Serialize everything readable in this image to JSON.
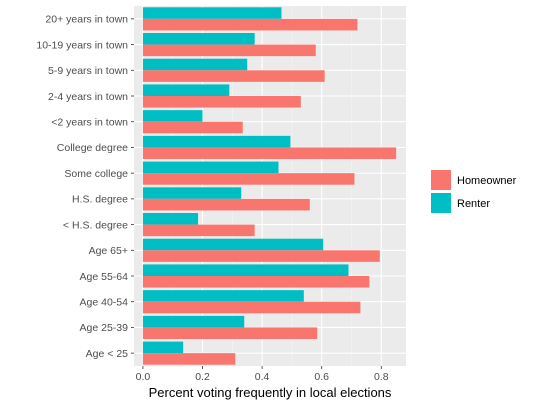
{
  "chart_data": {
    "type": "bar",
    "orientation": "horizontal",
    "categories": [
      "20+ years in town",
      "10-19 years in town",
      "5-9 years in town",
      "2-4 years in town",
      "<2 years in town",
      "College degree",
      "Some college",
      "H.S. degree",
      "< H.S. degree",
      "Age 65+",
      "Age 55-64",
      "Age 40-54",
      "Age 25-39",
      "Age < 25"
    ],
    "series": [
      {
        "name": "Homeowner",
        "color": "#F8766D",
        "values": [
          0.72,
          0.58,
          0.61,
          0.53,
          0.335,
          0.85,
          0.71,
          0.56,
          0.375,
          0.795,
          0.76,
          0.73,
          0.585,
          0.31
        ]
      },
      {
        "name": "Renter",
        "color": "#00BFC4",
        "values": [
          0.465,
          0.375,
          0.35,
          0.29,
          0.2,
          0.495,
          0.455,
          0.33,
          0.185,
          0.605,
          0.69,
          0.54,
          0.34,
          0.135
        ]
      }
    ],
    "xlabel": "Percent voting frequently in local elections",
    "ylabel": "",
    "xlim": [
      -0.03,
      0.883
    ],
    "xticks": [
      "0.0",
      "0.2",
      "0.4",
      "0.6",
      "0.8"
    ],
    "grid": true,
    "legend_position": "right"
  }
}
